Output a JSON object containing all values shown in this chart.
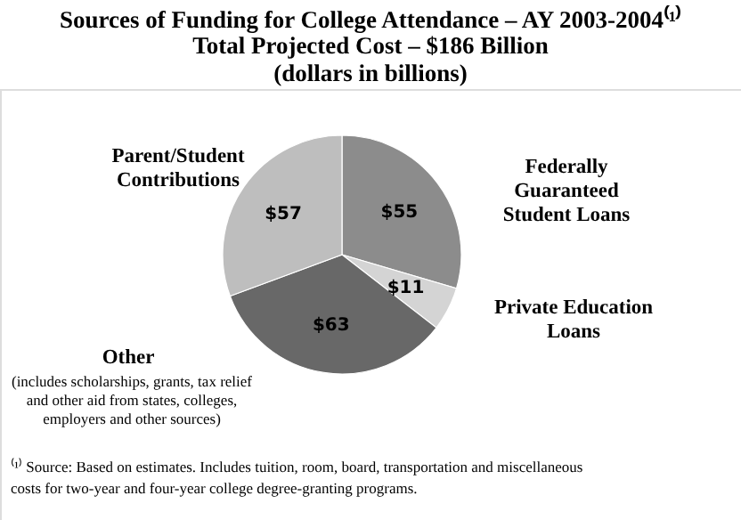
{
  "chart_data": {
    "type": "pie",
    "title": "Sources of Funding for College Attendance – AY 2003-2004⁽¹⁾",
    "subtitle": "Total Projected Cost – $186 Billion\n(dollars in billions)",
    "categories": [
      "Federally\nGuaranteed\nStudent Loans",
      "Private Education\nLoans",
      "Other",
      "Parent/Student\nContributions"
    ],
    "values": [
      55,
      11,
      63,
      57
    ],
    "value_labels": [
      "$55",
      "$11",
      "$63",
      "$57"
    ],
    "colors": [
      "#8c8c8c",
      "#d4d4d4",
      "#686868",
      "#bebebe"
    ],
    "annotations": [
      "(includes scholarships, grants, tax relief\nand other aid from states, colleges,\nemployers and other sources)",
      "⁽¹⁾ Source:  Based on estimates. Includes tuition, room, board, transportation and miscellaneous costs for two-year and four-year college degree-granting programs."
    ]
  }
}
